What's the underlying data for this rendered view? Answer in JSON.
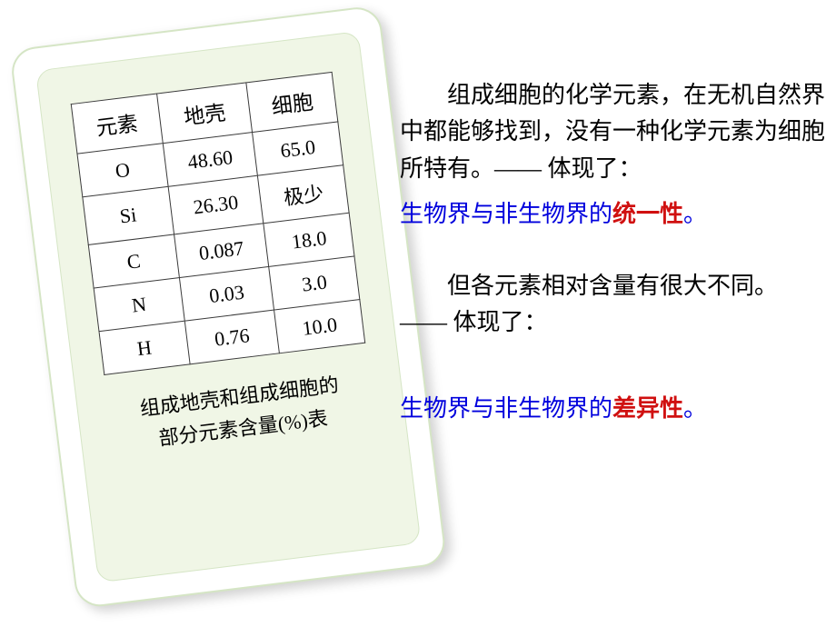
{
  "table": {
    "headers": [
      "元素",
      "地壳",
      "细胞"
    ],
    "rows": [
      [
        "O",
        "48.60",
        "65.0"
      ],
      [
        "Si",
        "26.30",
        "极少"
      ],
      [
        "C",
        "0.087",
        "18.0"
      ],
      [
        "N",
        "0.03",
        "3.0"
      ],
      [
        "H",
        "0.76",
        "10.0"
      ]
    ],
    "caption_line1": "组成地壳和组成细胞的",
    "caption_line2": "部分元素含量(%)表",
    "border_color": "#3a3a3a",
    "bg_color": "#ffffff",
    "font_size": 22
  },
  "card": {
    "outer_bg": "#ffffff",
    "inner_bg": "#f0f6e6",
    "border_color": "#d5e5c5",
    "rotation_deg": -7,
    "border_radius_outer": 28,
    "border_radius_inner": 18
  },
  "body_text": {
    "p1": "组成细胞的化学元素，在无机自然界中都能够找到，没有一种化学元素为细胞所特有。—— 体现了：",
    "hl1_prefix": "生物界与非生物界的",
    "hl1_emph": "统一性",
    "hl1_suffix": "。",
    "p2": "但各元素相对含量有很大不同。 —— 体现了：",
    "hl2_prefix": "生物界与非生物界的",
    "hl2_emph": "差异性",
    "hl2_suffix": "。",
    "text_color": "#000000",
    "highlight_color": "#0000dd",
    "emph_color": "#d01010",
    "font_size": 26
  }
}
